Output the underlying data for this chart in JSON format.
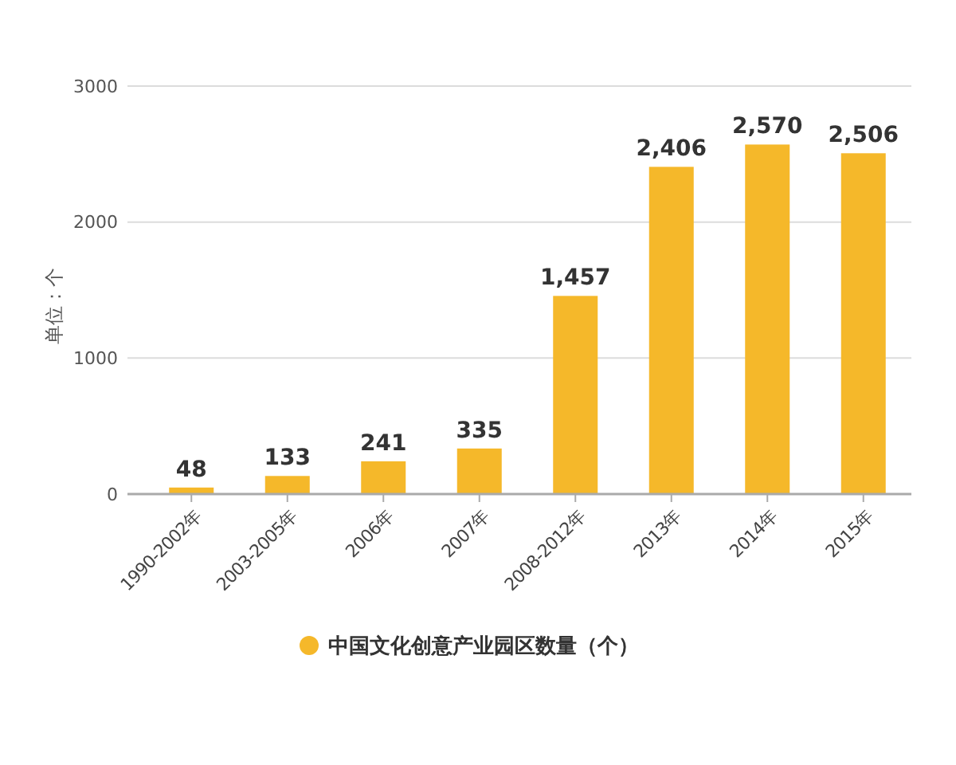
{
  "chart_data": {
    "type": "bar",
    "ylabel": "单位：个",
    "categories": [
      "1990-2002年",
      "2003-2005年",
      "2006年",
      "2007年",
      "2008-2012年",
      "2013年",
      "2014年",
      "2015年"
    ],
    "series": [
      {
        "name": "中国文化创意产业园区数量（个）",
        "color": "#f5b82a",
        "values": [
          48,
          133,
          241,
          335,
          1457,
          2406,
          2570,
          2506
        ],
        "value_labels": [
          "48",
          "133",
          "241",
          "335",
          "1,457",
          "2,406",
          "2,570",
          "2,506"
        ]
      }
    ],
    "ylim": [
      0,
      3000
    ],
    "yticks": [
      0,
      1000,
      2000,
      3000
    ],
    "grid": "y",
    "legend": "bottom"
  }
}
